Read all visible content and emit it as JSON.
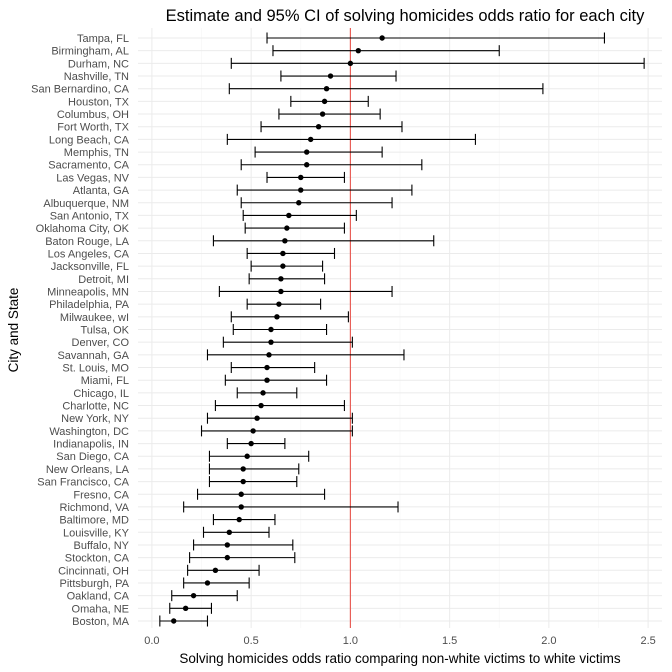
{
  "chart_data": {
    "type": "scatter",
    "title": "Estimate and 95% CI of solving homicides odds ratio for each city",
    "xlabel": "Solving homicides odds ratio comparing non-white victims to white victims",
    "ylabel": "City and State",
    "xlim": [
      -0.07,
      2.57
    ],
    "x_ticks": [
      0.0,
      0.5,
      1.0,
      1.5,
      2.0,
      2.5
    ],
    "x_tick_labels": [
      "0.0",
      "0.5",
      "1.0",
      "1.5",
      "2.0",
      "2.5"
    ],
    "grid": true,
    "reference_line": {
      "x": 1.0,
      "color": "#e8544c"
    },
    "point_color": "#000000",
    "categories": [
      "Tampa, FL",
      "Birmingham, AL",
      "Durham, NC",
      "Nashville, TN",
      "San Bernardino, CA",
      "Houston, TX",
      "Columbus, OH",
      "Fort Worth, TX",
      "Long Beach, CA",
      "Memphis, TN",
      "Sacramento, CA",
      "Las Vegas, NV",
      "Atlanta, GA",
      "Albuquerque, NM",
      "San Antonio, TX",
      "Oklahoma City, OK",
      "Baton Rouge, LA",
      "Los Angeles, CA",
      "Jacksonville, FL",
      "Detroit, MI",
      "Minneapolis, MN",
      "Philadelphia, PA",
      "Milwaukee, wI",
      "Tulsa, OK",
      "Denver, CO",
      "Savannah, GA",
      "St. Louis, MO",
      "Miami, FL",
      "Chicago, IL",
      "Charlotte, NC",
      "New York, NY",
      "Washington, DC",
      "Indianapolis, IN",
      "San Diego, CA",
      "New Orleans, LA",
      "San Francisco, CA",
      "Fresno, CA",
      "Richmond, VA",
      "Baltimore, MD",
      "Louisville, KY",
      "Buffalo, NY",
      "Stockton, CA",
      "Cincinnati, OH",
      "Pittsburgh, PA",
      "Oakland, CA",
      "Omaha, NE",
      "Boston, MA"
    ],
    "estimates": [
      1.16,
      1.04,
      1.0,
      0.9,
      0.88,
      0.87,
      0.86,
      0.84,
      0.8,
      0.78,
      0.78,
      0.75,
      0.75,
      0.74,
      0.69,
      0.68,
      0.67,
      0.66,
      0.66,
      0.65,
      0.65,
      0.64,
      0.63,
      0.6,
      0.6,
      0.59,
      0.58,
      0.58,
      0.56,
      0.55,
      0.53,
      0.51,
      0.5,
      0.48,
      0.46,
      0.46,
      0.45,
      0.45,
      0.44,
      0.39,
      0.38,
      0.38,
      0.32,
      0.28,
      0.21,
      0.17,
      0.11
    ],
    "ci_low": [
      0.58,
      0.61,
      0.4,
      0.65,
      0.39,
      0.7,
      0.64,
      0.55,
      0.38,
      0.52,
      0.45,
      0.58,
      0.43,
      0.45,
      0.46,
      0.47,
      0.31,
      0.48,
      0.5,
      0.49,
      0.34,
      0.48,
      0.4,
      0.41,
      0.36,
      0.28,
      0.4,
      0.37,
      0.43,
      0.32,
      0.28,
      0.25,
      0.38,
      0.29,
      0.29,
      0.29,
      0.23,
      0.16,
      0.31,
      0.26,
      0.21,
      0.19,
      0.18,
      0.16,
      0.1,
      0.09,
      0.04
    ],
    "ci_high": [
      2.28,
      1.75,
      2.48,
      1.23,
      1.97,
      1.09,
      1.15,
      1.26,
      1.63,
      1.16,
      1.36,
      0.97,
      1.31,
      1.21,
      1.03,
      0.97,
      1.42,
      0.92,
      0.86,
      0.87,
      1.21,
      0.85,
      0.99,
      0.88,
      1.01,
      1.27,
      0.82,
      0.88,
      0.73,
      0.97,
      1.01,
      1.01,
      0.67,
      0.79,
      0.74,
      0.73,
      0.87,
      1.24,
      0.62,
      0.59,
      0.71,
      0.72,
      0.54,
      0.49,
      0.43,
      0.3,
      0.28
    ]
  }
}
